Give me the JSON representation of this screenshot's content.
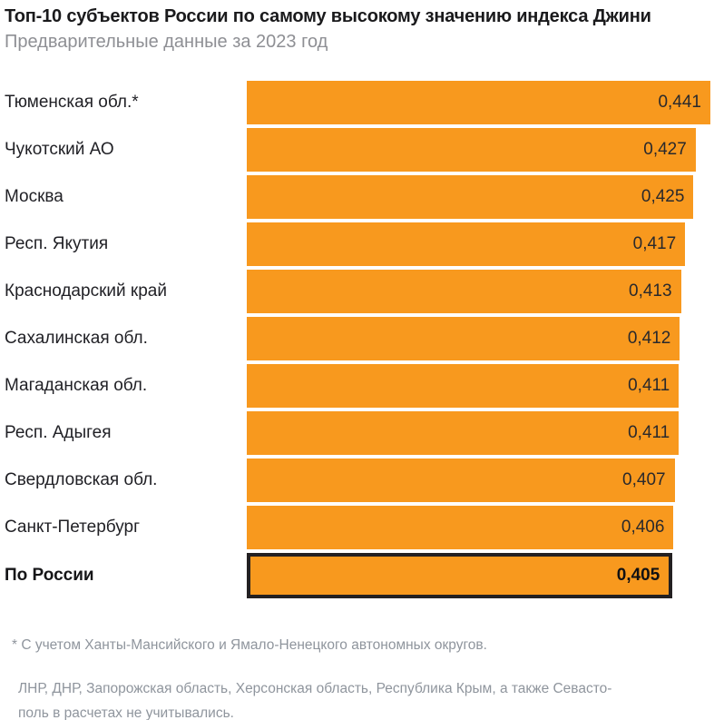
{
  "header": {
    "title": "Топ-10 субъектов России по самому высокому значению индекса Джини",
    "subtitle": "Предварительные данные за 2023 год"
  },
  "chart_data": {
    "type": "bar",
    "orientation": "horizontal",
    "title": "Топ-10 субъектов России по самому высокому значению индекса Джини",
    "subtitle": "Предварительные данные за 2023 год",
    "categories": [
      "Тюменская обл.*",
      "Чукотский АО",
      "Москва",
      "Респ. Якутия",
      "Краснодарский край",
      "Сахалинская обл.",
      "Магаданская обл.",
      "Респ. Адыгея",
      "Свердловская обл.",
      "Санкт-Петербург",
      "По России"
    ],
    "values": [
      0.441,
      0.427,
      0.425,
      0.417,
      0.413,
      0.412,
      0.411,
      0.411,
      0.407,
      0.406,
      0.405
    ],
    "value_labels": [
      "0,441",
      "0,427",
      "0,425",
      "0,417",
      "0,413",
      "0,412",
      "0,411",
      "0,411",
      "0,407",
      "0,406",
      "0,405"
    ],
    "highlight_index": 10,
    "xlim": [
      0,
      0.441
    ],
    "grid": false,
    "legend": false,
    "bar_color": "#F8991E",
    "highlight_border_color": "#232021"
  },
  "footnotes": {
    "note1": "* С учетом Ханты-Мансийского и Ямало-Ненецкого автономных округов.",
    "note2": "ЛНР, ДНР, Запорожская область, Херсонская область, Республика Крым, а также Севасто-\nполь в расчетах не учитывались."
  },
  "colors": {
    "background": "#ffffff",
    "bar": "#F8991E",
    "highlight_border": "#232021",
    "title_text": "#1a1a1c",
    "label_text": "#212126",
    "muted_text": "#8f959d"
  }
}
